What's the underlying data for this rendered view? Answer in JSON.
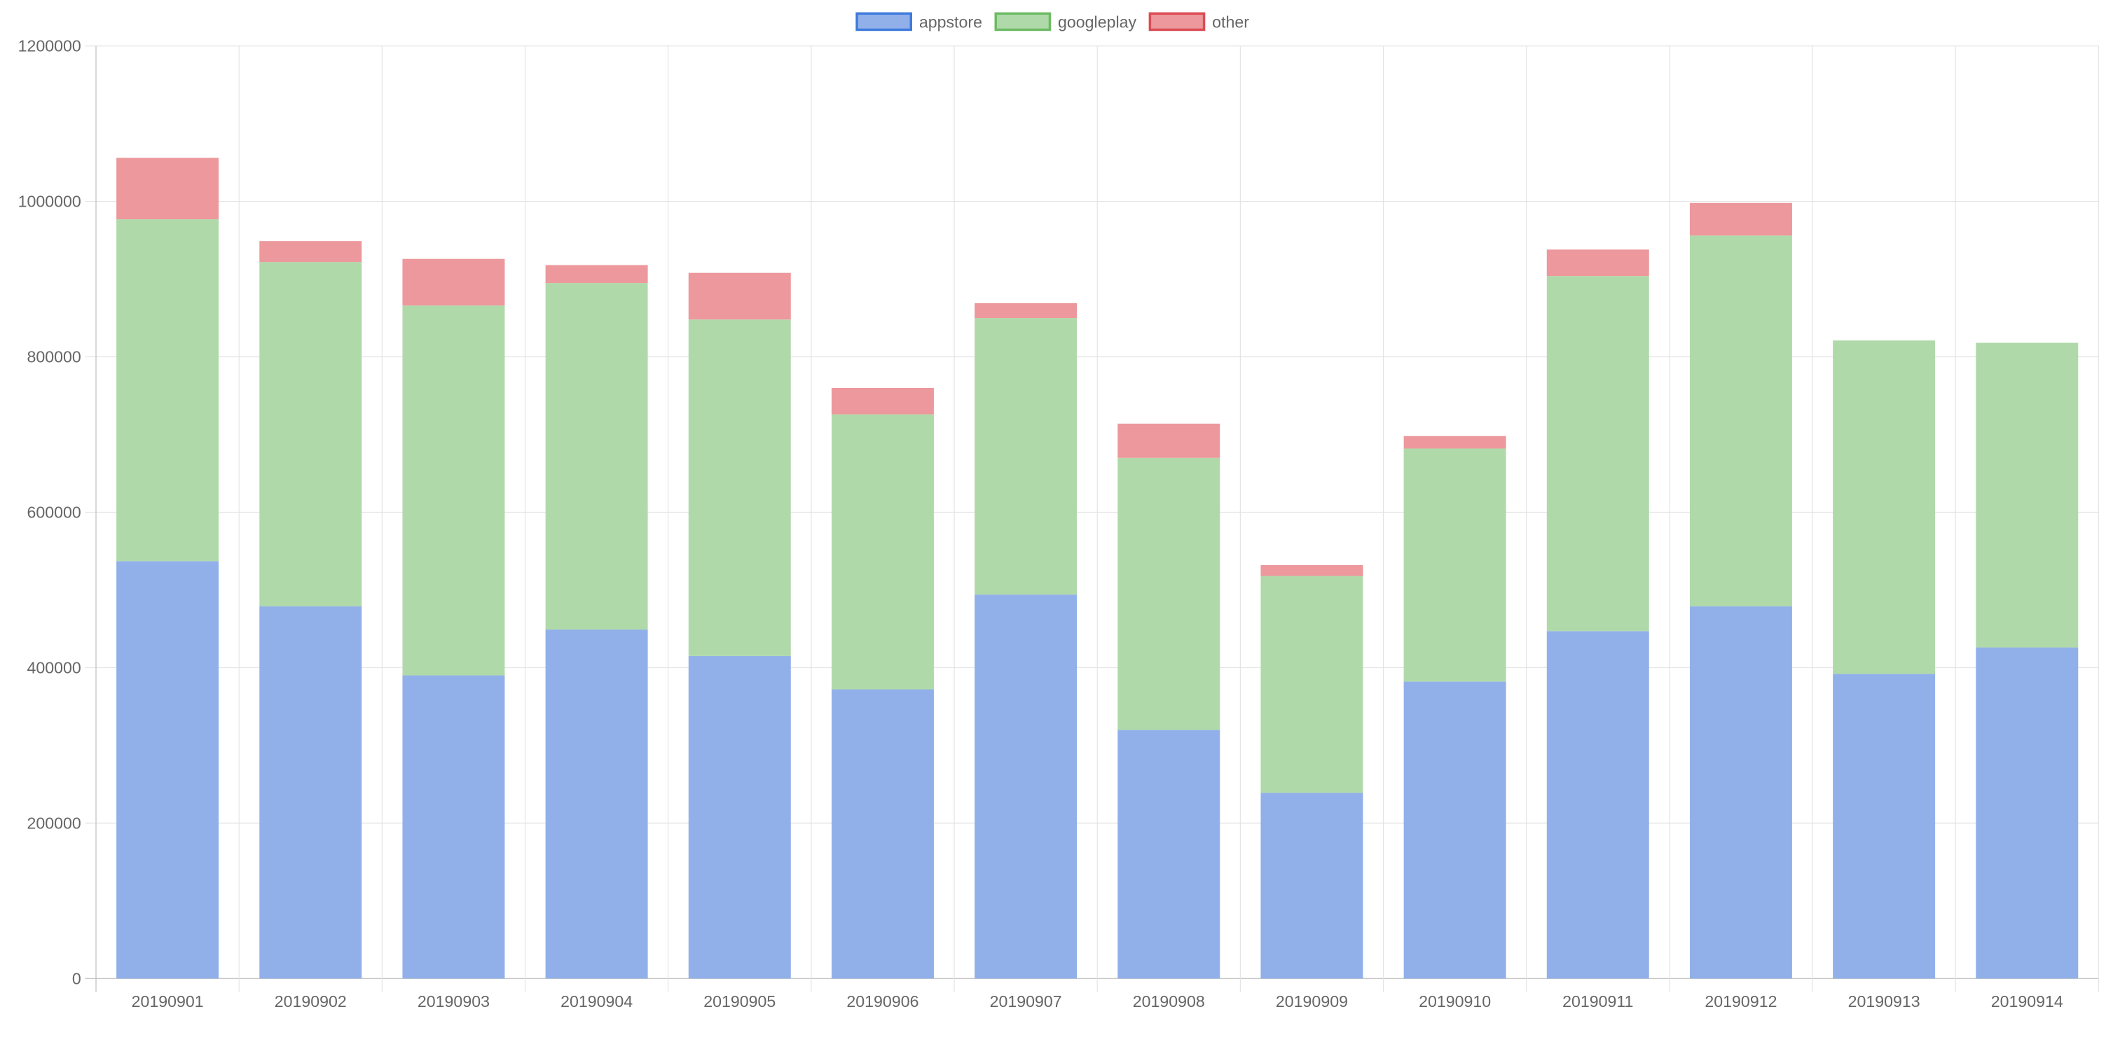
{
  "chart_data": {
    "type": "bar",
    "stacked": true,
    "title": "",
    "xlabel": "",
    "ylabel": "",
    "ylim": [
      0,
      1200000
    ],
    "yticks": [
      "0",
      "200000",
      "400000",
      "600000",
      "800000",
      "1000000",
      "1200000"
    ],
    "grid": true,
    "legend_position": "top-center",
    "categories": [
      "20190901",
      "20190902",
      "20190903",
      "20190904",
      "20190905",
      "20190906",
      "20190907",
      "20190908",
      "20190909",
      "20190910",
      "20190911",
      "20190912",
      "20190913",
      "20190914"
    ],
    "series": [
      {
        "name": "appstore",
        "color": "#91B0EA",
        "border_color": "#3F7BDB",
        "values": [
          537000,
          479000,
          390000,
          449000,
          415000,
          372000,
          494000,
          320000,
          239000,
          382000,
          447000,
          479000,
          392000,
          426000
        ]
      },
      {
        "name": "googleplay",
        "color": "#B0D9AA",
        "border_color": "#6DBB63",
        "values": [
          440000,
          443000,
          476000,
          446000,
          433000,
          354000,
          356000,
          350000,
          279000,
          300000,
          457000,
          477000,
          429000,
          392000
        ]
      },
      {
        "name": "other",
        "color": "#EC989C",
        "border_color": "#DC4B55",
        "values": [
          79000,
          27000,
          60000,
          23000,
          60000,
          34000,
          19000,
          44000,
          14000,
          16000,
          34000,
          42000,
          0,
          0
        ]
      }
    ]
  }
}
